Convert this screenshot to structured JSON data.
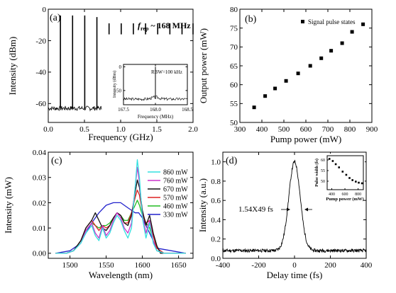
{
  "figure": {
    "background": "#ffffff",
    "panel_labels": [
      "(a)",
      "(b)",
      "(c)",
      "(d)"
    ]
  },
  "chart_data": [
    {
      "panel": "(a)",
      "type": "line",
      "title": "",
      "annotation_main": "f",
      "annotation_sub": "rep",
      "annotation_rest": " ~ 168 MHz",
      "xlabel": "Frequency (GHz)",
      "ylabel": "Intensity (dBm)",
      "xlim": [
        0,
        2.0
      ],
      "ylim": [
        -72,
        0
      ],
      "xticks": [
        0.0,
        0.5,
        1.0,
        1.5,
        2.0
      ],
      "xtick_labels": [
        "0.0",
        "0.5",
        "1.0",
        "1.5",
        "2.0"
      ],
      "yticks": [
        -60,
        -40,
        -20,
        0
      ],
      "ytick_labels": [
        "-60",
        "-40",
        "-20",
        "0"
      ],
      "noise_floor": -63,
      "line_color": "#000000",
      "comb_lines": {
        "x": [
          0.168,
          0.336,
          0.504,
          0.672,
          0.84,
          1.008,
          1.176,
          1.344,
          1.512,
          1.68,
          1.848,
          2.0
        ],
        "top": [
          -4,
          -4,
          -4,
          -5,
          -9,
          -9,
          -9,
          -9,
          -9,
          -9,
          -9,
          -9
        ],
        "bottom": [
          -63,
          -63,
          -63,
          -63,
          -16,
          -16,
          -16,
          -16,
          -16,
          -16,
          -16,
          -16
        ]
      },
      "inset": {
        "type": "line",
        "annotation": "RBW=100 kHz",
        "xlabel": "Frequency (MHz)",
        "ylabel": "Intensity (dBm)",
        "xlim": [
          167.5,
          168.5
        ],
        "ylim": [
          -80,
          5
        ],
        "xticks": [
          167.5,
          168.0,
          168.5
        ],
        "xtick_labels": [
          "167.5",
          "168.0",
          "168.5"
        ],
        "yticks": [
          -50,
          0
        ],
        "ytick_labels": [
          "-50",
          "0"
        ],
        "peak_x": 168.0,
        "peak_value": 0,
        "noise_floor": -68
      }
    },
    {
      "panel": "(b)",
      "type": "scatter",
      "title": "",
      "xlabel": "Pump power (mW)",
      "ylabel": "Output power (mW)",
      "xlim": [
        300,
        900
      ],
      "ylim": [
        50,
        80
      ],
      "xticks": [
        300,
        400,
        500,
        600,
        700,
        800,
        900
      ],
      "xtick_labels": [
        "300",
        "400",
        "500",
        "600",
        "700",
        "800",
        "900"
      ],
      "yticks": [
        50,
        55,
        60,
        65,
        70,
        75,
        80
      ],
      "ytick_labels": [
        "50",
        "55",
        "60",
        "65",
        "70",
        "75",
        "80"
      ],
      "legend": "Signal pulse states",
      "legend_position": "top-right",
      "series": [
        {
          "name": "Signal pulse states",
          "color": "#000000",
          "x": [
            365,
            415,
            460,
            510,
            565,
            620,
            670,
            715,
            765,
            810,
            860
          ],
          "y": [
            54,
            57,
            59,
            61,
            63,
            65,
            67,
            69,
            71,
            74,
            76
          ]
        }
      ]
    },
    {
      "panel": "(c)",
      "type": "line",
      "title": "",
      "xlabel": "Wavelength (nm)",
      "ylabel": "Intensity (mW)",
      "xlim": [
        1470,
        1670
      ],
      "ylim": [
        -0.002,
        0.04
      ],
      "xticks": [
        1500,
        1550,
        1600,
        1650
      ],
      "xtick_labels": [
        "1500",
        "1550",
        "1600",
        "1650"
      ],
      "yticks": [
        0.0,
        0.01,
        0.02,
        0.03,
        0.04
      ],
      "ytick_labels": [
        "0.00",
        "0.01",
        "0.02",
        "0.03",
        "0.04"
      ],
      "legend_position": "top-right",
      "series": [
        {
          "name": "860 mW",
          "color": "#33e0e0",
          "x": [
            1480,
            1495,
            1505,
            1515,
            1522,
            1530,
            1535,
            1540,
            1545,
            1550,
            1555,
            1560,
            1565,
            1570,
            1575,
            1580,
            1585,
            1590,
            1593,
            1596,
            1600,
            1605,
            1610,
            1615,
            1620,
            1630,
            1660
          ],
          "y": [
            0,
            0,
            0.001,
            0.004,
            0.008,
            0.011,
            0.007,
            0.005,
            0.01,
            0.006,
            0.008,
            0.012,
            0.015,
            0.013,
            0.009,
            0.006,
            0.01,
            0.026,
            0.037,
            0.03,
            0.014,
            0.006,
            0.012,
            0.004,
            0.001,
            0,
            0
          ]
        },
        {
          "name": "760 mW",
          "color": "#cc33cc",
          "x": [
            1480,
            1495,
            1505,
            1515,
            1522,
            1530,
            1535,
            1540,
            1545,
            1550,
            1555,
            1560,
            1565,
            1570,
            1575,
            1580,
            1585,
            1590,
            1593,
            1596,
            1600,
            1605,
            1610,
            1615,
            1620,
            1630,
            1660
          ],
          "y": [
            0,
            0,
            0.001,
            0.004,
            0.009,
            0.012,
            0.008,
            0.006,
            0.011,
            0.007,
            0.009,
            0.013,
            0.016,
            0.014,
            0.01,
            0.008,
            0.012,
            0.026,
            0.034,
            0.028,
            0.015,
            0.008,
            0.013,
            0.005,
            0.001,
            0,
            0
          ]
        },
        {
          "name": "670 mW",
          "color": "#111111",
          "x": [
            1480,
            1495,
            1505,
            1515,
            1522,
            1530,
            1535,
            1540,
            1545,
            1550,
            1555,
            1560,
            1565,
            1570,
            1575,
            1580,
            1585,
            1590,
            1593,
            1596,
            1600,
            1605,
            1610,
            1615,
            1620,
            1625,
            1660
          ],
          "y": [
            0,
            0,
            0.001,
            0.005,
            0.01,
            0.013,
            0.016,
            0.013,
            0.01,
            0.009,
            0.011,
            0.014,
            0.016,
            0.015,
            0.012,
            0.011,
            0.015,
            0.024,
            0.029,
            0.026,
            0.017,
            0.011,
            0.015,
            0.008,
            0.003,
            0,
            0
          ]
        },
        {
          "name": "570 mW",
          "color": "#dd2222",
          "x": [
            1480,
            1495,
            1505,
            1515,
            1522,
            1530,
            1535,
            1540,
            1545,
            1550,
            1555,
            1560,
            1565,
            1570,
            1575,
            1580,
            1585,
            1590,
            1593,
            1596,
            1600,
            1605,
            1610,
            1615,
            1620,
            1630,
            1660
          ],
          "y": [
            0,
            0,
            0.001,
            0.005,
            0.01,
            0.013,
            0.011,
            0.009,
            0.011,
            0.01,
            0.011,
            0.014,
            0.016,
            0.015,
            0.012,
            0.012,
            0.016,
            0.022,
            0.025,
            0.023,
            0.016,
            0.012,
            0.013,
            0.007,
            0.002,
            0,
            0
          ]
        },
        {
          "name": "460 mW",
          "color": "#22bb22",
          "x": [
            1480,
            1495,
            1505,
            1515,
            1522,
            1530,
            1535,
            1540,
            1545,
            1550,
            1555,
            1560,
            1565,
            1570,
            1575,
            1580,
            1585,
            1590,
            1593,
            1596,
            1600,
            1605,
            1610,
            1615,
            1620,
            1630,
            1660
          ],
          "y": [
            0,
            0,
            0.001,
            0.005,
            0.009,
            0.012,
            0.011,
            0.01,
            0.011,
            0.011,
            0.012,
            0.014,
            0.016,
            0.015,
            0.013,
            0.013,
            0.016,
            0.019,
            0.021,
            0.019,
            0.015,
            0.012,
            0.01,
            0.005,
            0.001,
            0,
            0
          ]
        },
        {
          "name": "330 mW",
          "color": "#2222cc",
          "x": [
            1480,
            1500,
            1510,
            1520,
            1530,
            1540,
            1550,
            1560,
            1570,
            1575,
            1580,
            1585,
            1590,
            1595,
            1600,
            1605,
            1610,
            1615,
            1620,
            1660
          ],
          "y": [
            0,
            0.001,
            0.003,
            0.007,
            0.012,
            0.016,
            0.019,
            0.02,
            0.02,
            0.019,
            0.018,
            0.017,
            0.016,
            0.016,
            0.014,
            0.011,
            0.008,
            0.005,
            0.002,
            0
          ]
        }
      ]
    },
    {
      "panel": "(d)",
      "type": "line",
      "title": "",
      "xlabel": "Delay time (fs)",
      "ylabel": "Intensity (a.u.)",
      "xlim": [
        -400,
        400
      ],
      "ylim": [
        0,
        1.1
      ],
      "xticks": [
        -400,
        -200,
        0,
        200,
        400
      ],
      "xtick_labels": [
        "-400",
        "-200",
        "0",
        "200",
        "400"
      ],
      "yticks": [
        0.0,
        0.2,
        0.4,
        0.6,
        0.8,
        1.0
      ],
      "ytick_labels": [
        "0.0",
        "0.2",
        "0.4",
        "0.6",
        "0.8",
        "1.0"
      ],
      "annotation": "1.54X49 fs",
      "fwhm_fs": 75,
      "baseline": 0.08,
      "peak_x": 0,
      "peak_value": 1.0,
      "inset": {
        "type": "scatter",
        "xlabel": "Pump power (mW)",
        "ylabel": "Pulse width (fs)",
        "xlim": [
          330,
          880
        ],
        "ylim": [
          46,
          62
        ],
        "xticks": [
          400,
          600,
          800
        ],
        "xtick_labels": [
          "400",
          "600",
          "800"
        ],
        "yticks": [
          50,
          55,
          60
        ],
        "ytick_labels": [
          "50",
          "55",
          "60"
        ],
        "x": [
          365,
          415,
          460,
          510,
          565,
          620,
          670,
          715,
          765,
          810,
          860
        ],
        "y": [
          60.5,
          59.5,
          58,
          56.5,
          54.5,
          53,
          51.5,
          50.5,
          49.8,
          49.3,
          49
        ]
      }
    }
  ]
}
